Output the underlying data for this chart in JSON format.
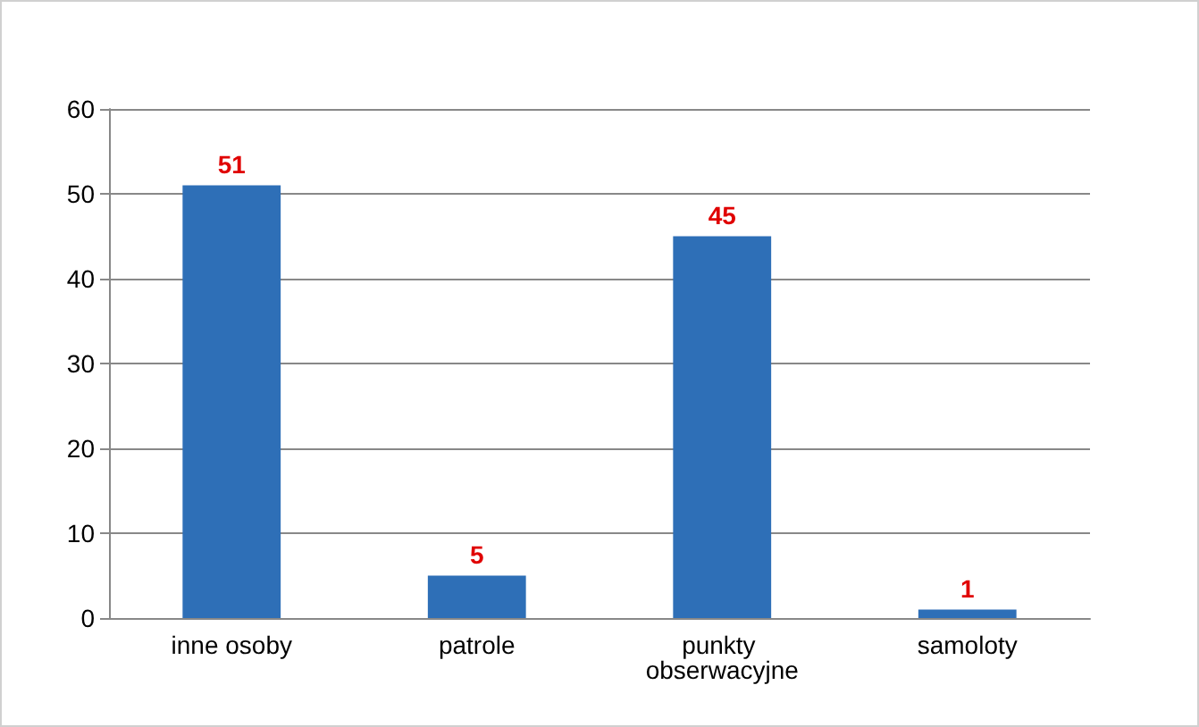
{
  "chart_data": {
    "type": "bar",
    "categories": [
      "inne osoby",
      "patrole",
      "punkty obserwacyjne",
      "samoloty"
    ],
    "values": [
      51,
      5,
      45,
      1
    ],
    "color": "#2e6fb7",
    "ylim": [
      0,
      60
    ],
    "yticks": [
      0,
      10,
      20,
      30,
      40,
      50,
      60
    ],
    "grid": true,
    "data_labels": true
  }
}
